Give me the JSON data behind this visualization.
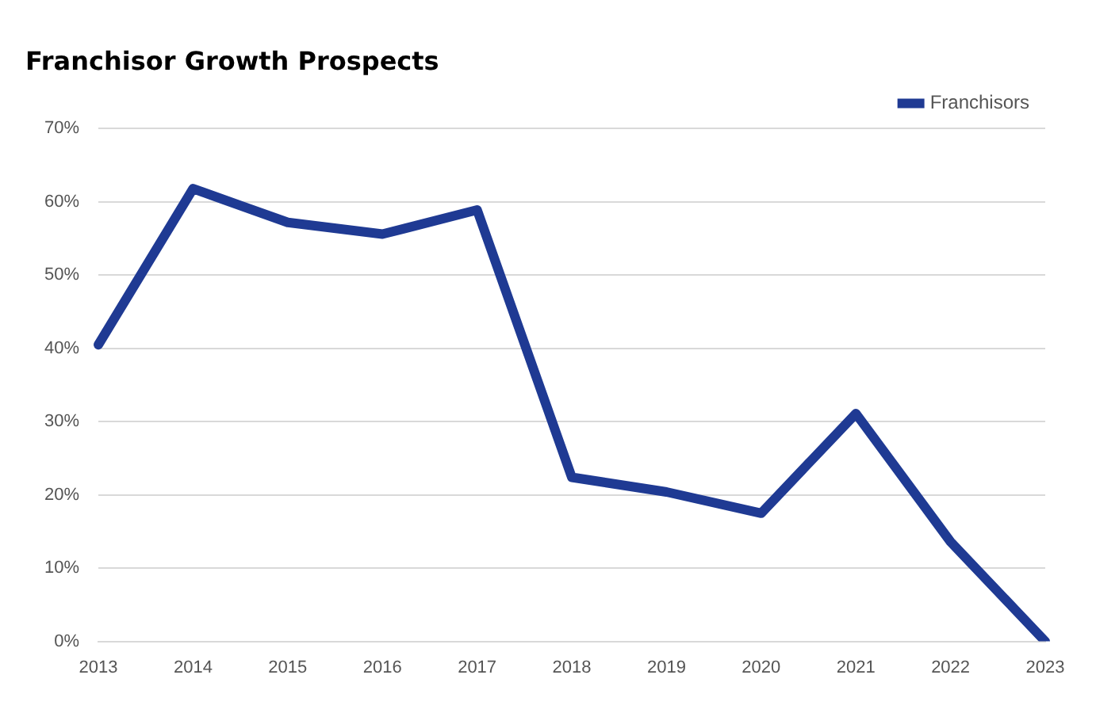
{
  "chart_data": {
    "type": "line",
    "title": "Franchisor Growth Prospects",
    "categories": [
      "2013",
      "2014",
      "2015",
      "2016",
      "2017",
      "2018",
      "2019",
      "2020",
      "2021",
      "2022",
      "2023"
    ],
    "series": [
      {
        "name": "Franchisors",
        "color": "#1f3a93",
        "values": [
          40.5,
          61.8,
          57.2,
          55.6,
          58.9,
          22.4,
          20.4,
          17.5,
          31.1,
          13.6,
          0
        ]
      }
    ],
    "ylim": [
      0,
      70
    ],
    "yticks": [
      {
        "value": 0,
        "label": "0%"
      },
      {
        "value": 10,
        "label": "10%"
      },
      {
        "value": 20,
        "label": "20%"
      },
      {
        "value": 30,
        "label": "30%"
      },
      {
        "value": 40,
        "label": "40%"
      },
      {
        "value": 50,
        "label": "50%"
      },
      {
        "value": 60,
        "label": "60%"
      },
      {
        "value": 70,
        "label": "70%"
      }
    ],
    "grid": "y",
    "legend": "top right",
    "marker": "none",
    "line_style": "solid"
  }
}
